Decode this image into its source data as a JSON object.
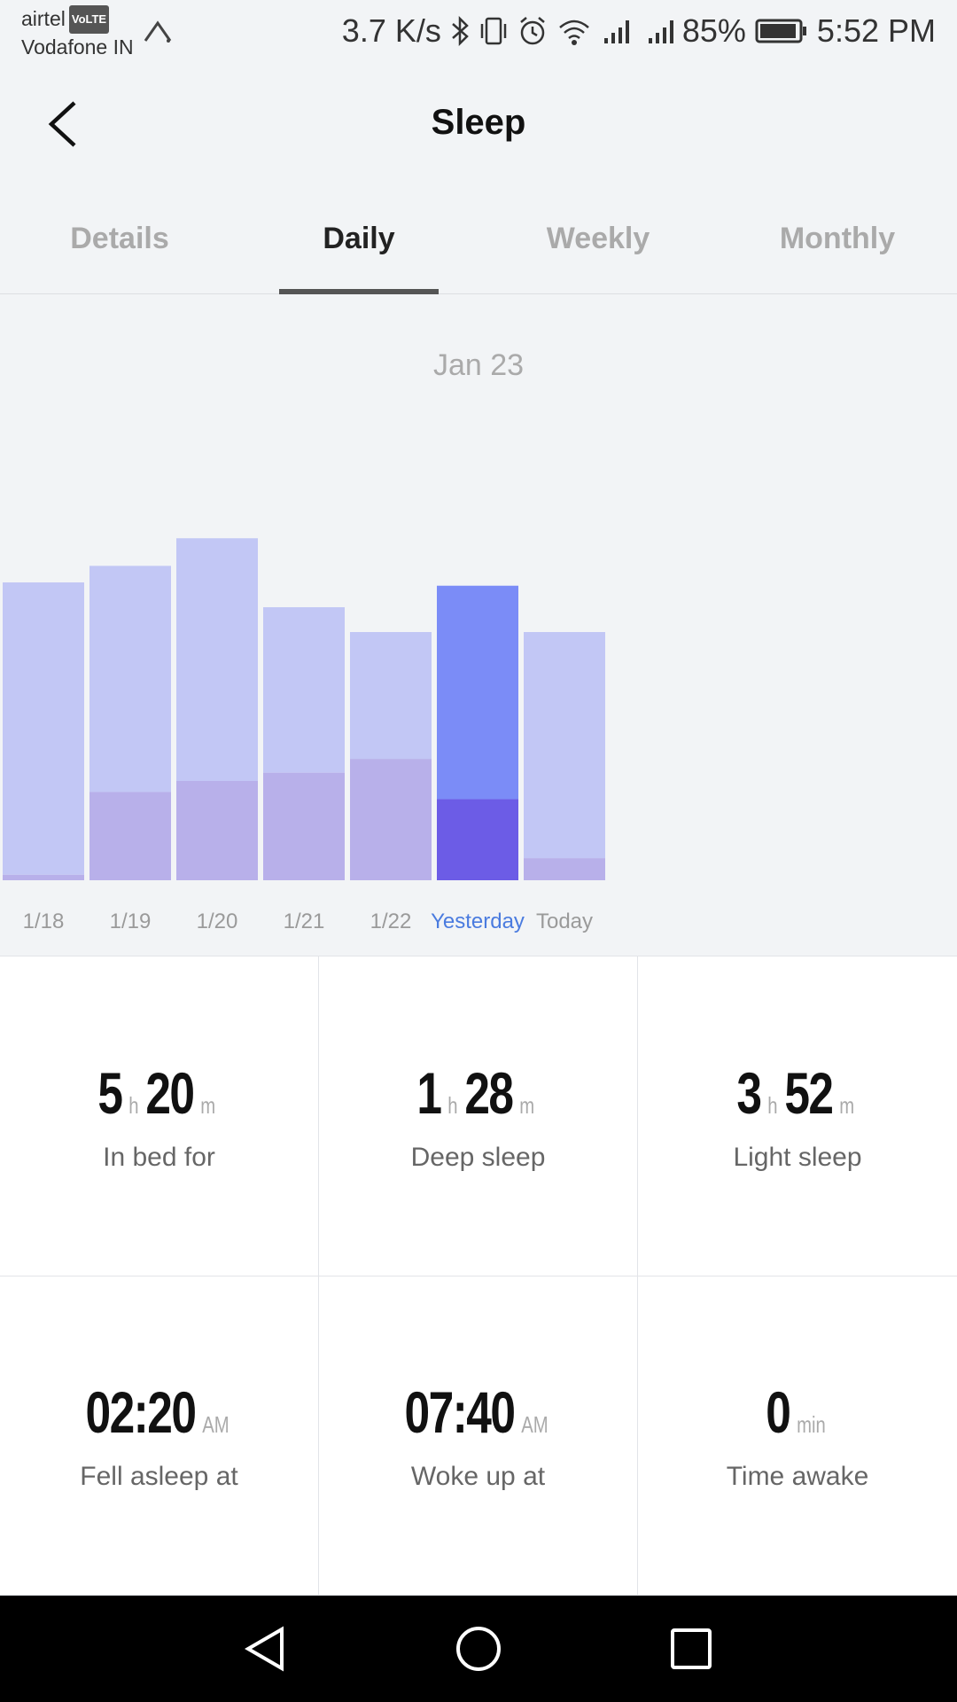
{
  "status": {
    "carrier1": "airtel",
    "volte": "VoLTE",
    "carrier2": "Vodafone IN",
    "speed": "3.7 K/s",
    "battery": "85%",
    "time": "5:52 PM"
  },
  "header": {
    "title": "Sleep",
    "back_icon": "chevron-left-icon"
  },
  "tabs": [
    {
      "label": "Details"
    },
    {
      "label": "Daily"
    },
    {
      "label": "Weekly"
    },
    {
      "label": "Monthly"
    }
  ],
  "colors": {
    "light_sleep": "#c2c7f5",
    "deep_sleep": "#b8b0ea",
    "selected_light": "#7b8cf7",
    "selected_deep": "#6c5ce6",
    "selected_label": "#4a7bdf"
  },
  "chart_data": {
    "type": "bar",
    "title": "Jan 23",
    "categories": [
      "1/18",
      "1/19",
      "1/20",
      "1/21",
      "1/22",
      "Yesterday",
      "Today"
    ],
    "selected_index": 5,
    "series": [
      {
        "values": [
          0.1,
          1.6,
          1.8,
          1.95,
          2.2,
          1.47,
          0.4
        ]
      },
      {
        "values": [
          5.3,
          4.1,
          4.4,
          3.0,
          2.3,
          3.87,
          4.1
        ]
      }
    ],
    "ylim": [
      0,
      9
    ]
  },
  "stats": [
    {
      "big1": "5",
      "unit1": "h",
      "big2": "20",
      "unit2": "m",
      "label": "In bed for"
    },
    {
      "big1": "1",
      "unit1": "h",
      "big2": "28",
      "unit2": "m",
      "label": "Deep sleep"
    },
    {
      "big1": "3",
      "unit1": "h",
      "big2": "52",
      "unit2": "m",
      "label": "Light sleep"
    },
    {
      "big1": "02:20",
      "unit1": "AM",
      "big2": "",
      "unit2": "",
      "label": "Fell asleep at"
    },
    {
      "big1": "07:40",
      "unit1": "AM",
      "big2": "",
      "unit2": "",
      "label": "Woke up at"
    },
    {
      "big1": "0",
      "unit1": "min",
      "big2": "",
      "unit2": "",
      "label": "Time awake"
    }
  ]
}
